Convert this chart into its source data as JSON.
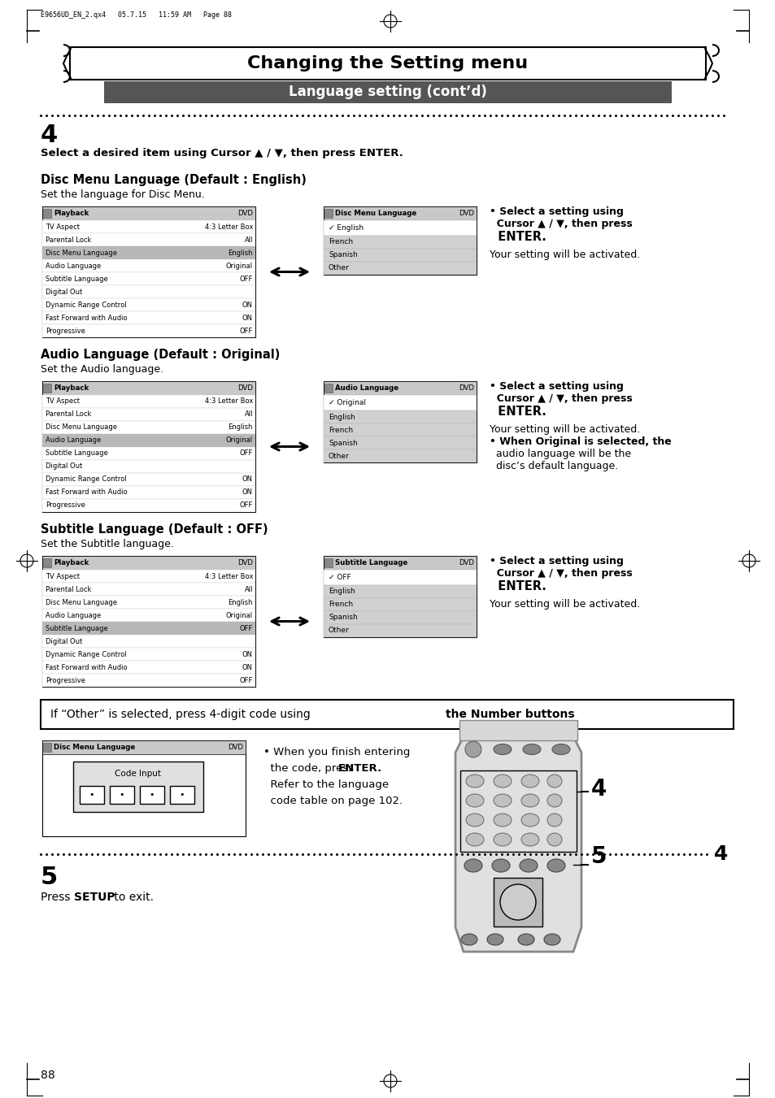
{
  "bg_color": "#ffffff",
  "page_header": "E9656UD_EN_2.qx4   05.7.15   11:59 AM   Page 88",
  "title": "Changing the Setting menu",
  "subtitle": "Language setting (cont’d)",
  "step4_text": "Select a desired item using Cursor ▲ / ▼, then press ENTER.",
  "section1_title": "Disc Menu Language (Default : English)",
  "section1_sub": "Set the language for Disc Menu.",
  "section2_title": "Audio Language (Default : Original)",
  "section2_sub": "Set the Audio language.",
  "section3_title": "Subtitle Language (Default : OFF)",
  "section3_sub": "Set the Subtitle language.",
  "playback_menu_rows": [
    [
      "TV Aspect",
      "4:3 Letter Box"
    ],
    [
      "Parental Lock",
      "All"
    ],
    [
      "Disc Menu Language",
      "English"
    ],
    [
      "Audio Language",
      "Original"
    ],
    [
      "Subtitle Language",
      "OFF"
    ],
    [
      "Digital Out",
      ""
    ],
    [
      "Dynamic Range Control",
      "ON"
    ],
    [
      "Fast Forward with Audio",
      "ON"
    ],
    [
      "Progressive",
      "OFF"
    ]
  ],
  "disc_menu_lang_options": [
    "English",
    "French",
    "Spanish",
    "Other"
  ],
  "audio_lang_options": [
    "Original",
    "English",
    "French",
    "Spanish",
    "Other"
  ],
  "subtitle_lang_options": [
    "OFF",
    "English",
    "French",
    "Spanish",
    "Other"
  ],
  "code_input_label": "Code Input",
  "when_text_lines": [
    "• When you finish entering",
    "  the code, press ENTER.",
    "  Refer to the language",
    "  code table on page 102."
  ],
  "page_number": "88"
}
